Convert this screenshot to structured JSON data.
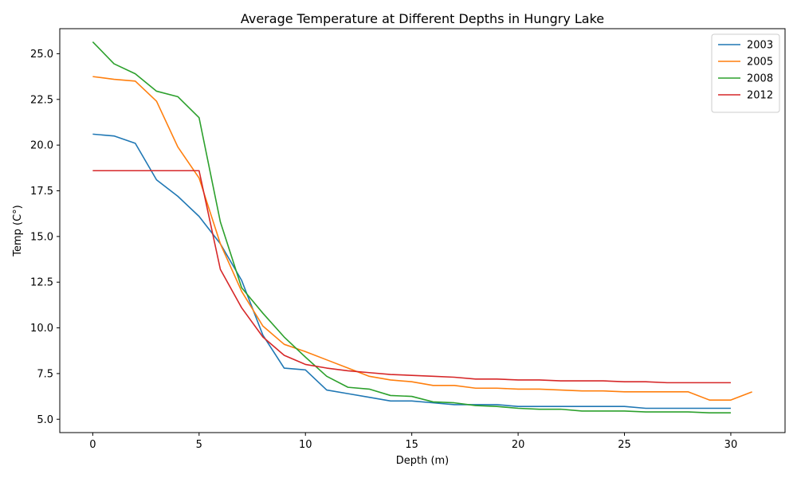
{
  "chart_data": {
    "type": "line",
    "title": "Average Temperature at Different Depths in Hungry Lake",
    "xlabel": "Depth (m)",
    "ylabel": "Temp (C°)",
    "xlim": [
      -1.55,
      32.55
    ],
    "ylim": [
      4.27,
      26.37
    ],
    "xticks": [
      0,
      5,
      10,
      15,
      20,
      25,
      30
    ],
    "yticks": [
      5.0,
      7.5,
      10.0,
      12.5,
      15.0,
      17.5,
      20.0,
      22.5,
      25.0
    ],
    "xtick_labels": [
      "0",
      "5",
      "10",
      "15",
      "20",
      "25",
      "30"
    ],
    "ytick_labels": [
      "5.0",
      "7.5",
      "10.0",
      "12.5",
      "15.0",
      "17.5",
      "20.0",
      "22.5",
      "25.0"
    ],
    "grid": false,
    "legend_position": "top-right",
    "series": [
      {
        "name": "2003",
        "color": "#1f77b4",
        "x": [
          0,
          1,
          2,
          3,
          4,
          5,
          6,
          7,
          8,
          9,
          10,
          11,
          12,
          13,
          14,
          15,
          16,
          17,
          18,
          19,
          20,
          21,
          22,
          23,
          24,
          25,
          26,
          27,
          28,
          29,
          30
        ],
        "y": [
          20.6,
          20.5,
          20.1,
          18.1,
          17.2,
          16.1,
          14.6,
          12.6,
          9.6,
          7.8,
          7.7,
          6.6,
          6.4,
          6.2,
          6.0,
          6.0,
          5.9,
          5.8,
          5.8,
          5.8,
          5.7,
          5.7,
          5.7,
          5.7,
          5.7,
          5.7,
          5.6,
          5.6,
          5.6,
          5.6,
          5.6
        ]
      },
      {
        "name": "2005",
        "color": "#ff7f0e",
        "x": [
          0,
          1,
          2,
          3,
          4,
          5,
          6,
          7,
          8,
          9,
          10,
          11,
          12,
          13,
          14,
          15,
          16,
          17,
          18,
          19,
          20,
          21,
          22,
          23,
          24,
          25,
          26,
          27,
          28,
          29,
          30,
          31
        ],
        "y": [
          23.75,
          23.6,
          23.5,
          22.4,
          19.9,
          18.2,
          14.6,
          12.0,
          10.1,
          9.1,
          8.7,
          8.25,
          7.8,
          7.35,
          7.15,
          7.05,
          6.85,
          6.85,
          6.7,
          6.7,
          6.65,
          6.65,
          6.6,
          6.55,
          6.55,
          6.5,
          6.5,
          6.5,
          6.5,
          6.05,
          6.05,
          6.5
        ]
      },
      {
        "name": "2008",
        "color": "#2ca02c",
        "x": [
          0,
          1,
          2,
          3,
          4,
          5,
          6,
          7,
          8,
          9,
          10,
          11,
          12,
          13,
          14,
          15,
          16,
          17,
          18,
          19,
          20,
          21,
          22,
          23,
          24,
          25,
          26,
          27,
          28,
          29,
          30
        ],
        "y": [
          25.65,
          24.45,
          23.9,
          22.95,
          22.65,
          21.5,
          15.8,
          12.2,
          10.8,
          9.5,
          8.4,
          7.35,
          6.75,
          6.65,
          6.3,
          6.25,
          5.95,
          5.9,
          5.75,
          5.7,
          5.6,
          5.55,
          5.55,
          5.45,
          5.45,
          5.45,
          5.4,
          5.4,
          5.4,
          5.35,
          5.35
        ]
      },
      {
        "name": "2012",
        "color": "#d62728",
        "x": [
          0,
          1,
          2,
          3,
          4,
          5,
          6,
          7,
          8,
          9,
          10,
          11,
          12,
          13,
          14,
          15,
          16,
          17,
          18,
          19,
          20,
          21,
          22,
          23,
          24,
          25,
          26,
          27,
          28,
          29,
          30
        ],
        "y": [
          18.6,
          18.6,
          18.6,
          18.6,
          18.6,
          18.6,
          13.2,
          11.1,
          9.5,
          8.5,
          8.0,
          7.8,
          7.65,
          7.55,
          7.45,
          7.4,
          7.35,
          7.3,
          7.2,
          7.2,
          7.15,
          7.15,
          7.1,
          7.1,
          7.1,
          7.05,
          7.05,
          7.0,
          7.0,
          7.0,
          7.0
        ]
      }
    ]
  }
}
